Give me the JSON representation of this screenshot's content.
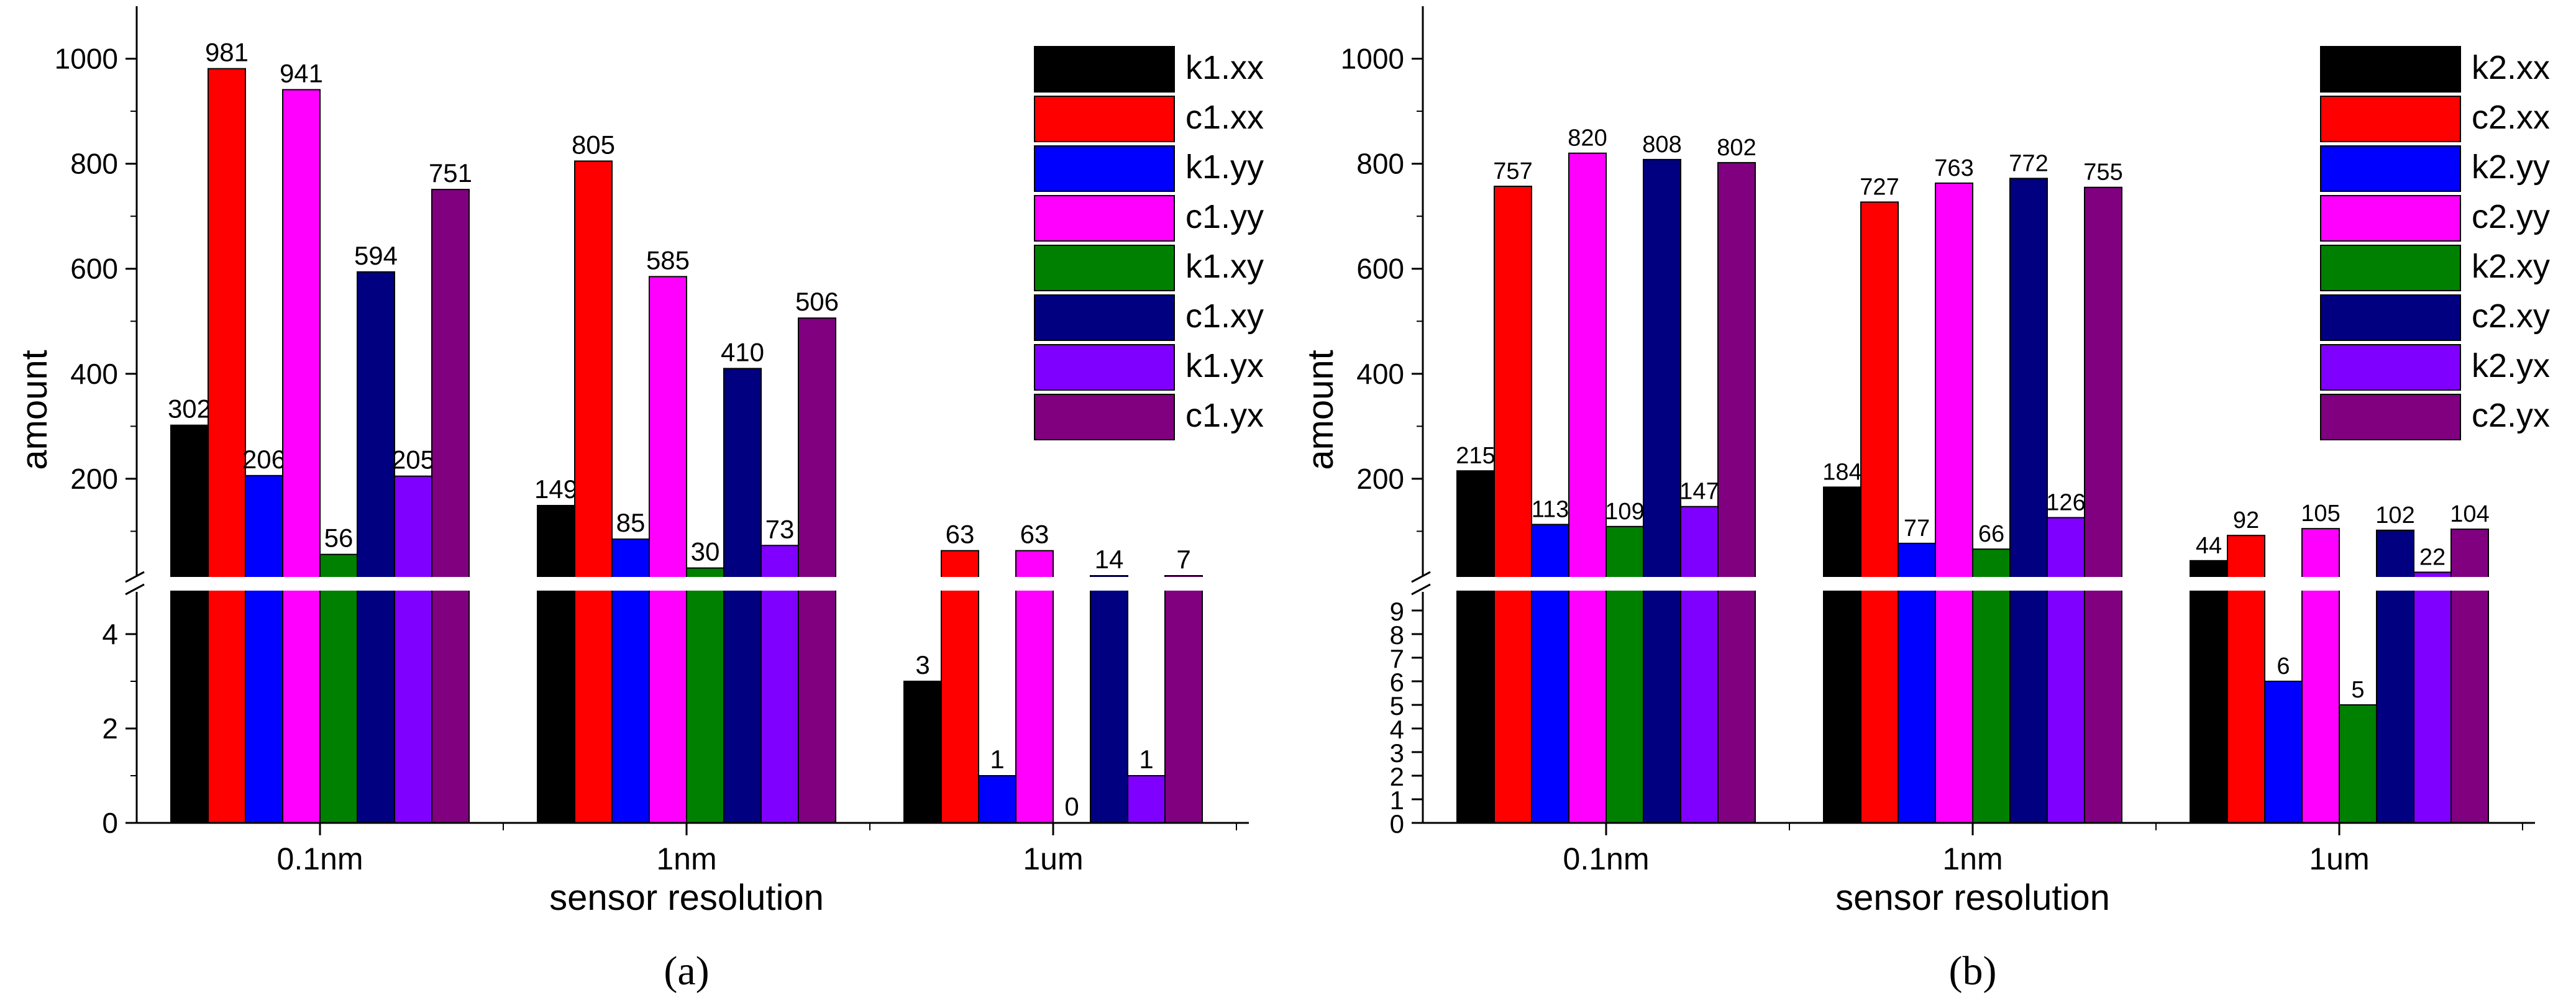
{
  "chart_data": [
    {
      "type": "bar",
      "panel_label": "(a)",
      "xlabel": "sensor resolution",
      "ylabel": "amount",
      "categories": [
        "0.1nm",
        "1nm",
        "1um"
      ],
      "axis_break": true,
      "upper_ylim": [
        0,
        1100
      ],
      "upper_yticks": [
        200,
        400,
        600,
        800,
        1000
      ],
      "lower_ylim": [
        0,
        5
      ],
      "lower_yticks": [
        0,
        2,
        4
      ],
      "legend_position": "top-right",
      "series": [
        {
          "name": "k1.xx",
          "color": "#000000",
          "values": [
            302,
            149,
            3
          ]
        },
        {
          "name": "c1.xx",
          "color": "#ff0000",
          "values": [
            981,
            805,
            63
          ]
        },
        {
          "name": "k1.yy",
          "color": "#0000ff",
          "values": [
            206,
            85,
            1
          ]
        },
        {
          "name": "c1.yy",
          "color": "#ff00ff",
          "values": [
            941,
            585,
            63
          ]
        },
        {
          "name": "k1.xy",
          "color": "#008000",
          "values": [
            56,
            30,
            0
          ]
        },
        {
          "name": "c1.xy",
          "color": "#000080",
          "values": [
            594,
            410,
            14
          ]
        },
        {
          "name": "k1.yx",
          "color": "#8000ff",
          "values": [
            205,
            73,
            1
          ]
        },
        {
          "name": "c1.yx",
          "color": "#800080",
          "values": [
            751,
            506,
            7
          ]
        }
      ]
    },
    {
      "type": "bar",
      "panel_label": "(b)",
      "xlabel": "sensor resolution",
      "ylabel": "amount",
      "categories": [
        "0.1nm",
        "1nm",
        "1um"
      ],
      "axis_break": true,
      "upper_ylim": [
        0,
        1100
      ],
      "upper_yticks": [
        200,
        400,
        600,
        800,
        1000
      ],
      "lower_ylim": [
        0,
        10
      ],
      "lower_yticks": [
        0,
        1,
        2,
        3,
        4,
        5,
        6,
        7,
        8,
        9
      ],
      "legend_position": "top-right",
      "series": [
        {
          "name": "k2.xx",
          "color": "#000000",
          "values": [
            215,
            184,
            44
          ]
        },
        {
          "name": "c2.xx",
          "color": "#ff0000",
          "values": [
            757,
            727,
            92
          ]
        },
        {
          "name": "k2.yy",
          "color": "#0000ff",
          "values": [
            113,
            77,
            6
          ]
        },
        {
          "name": "c2.yy",
          "color": "#ff00ff",
          "values": [
            820,
            763,
            105
          ]
        },
        {
          "name": "k2.xy",
          "color": "#008000",
          "values": [
            109,
            66,
            5
          ]
        },
        {
          "name": "c2.xy",
          "color": "#000080",
          "values": [
            808,
            772,
            102
          ]
        },
        {
          "name": "k2.yx",
          "color": "#8000ff",
          "values": [
            147,
            126,
            22
          ]
        },
        {
          "name": "c2.yx",
          "color": "#800080",
          "values": [
            802,
            755,
            104
          ]
        }
      ]
    }
  ]
}
